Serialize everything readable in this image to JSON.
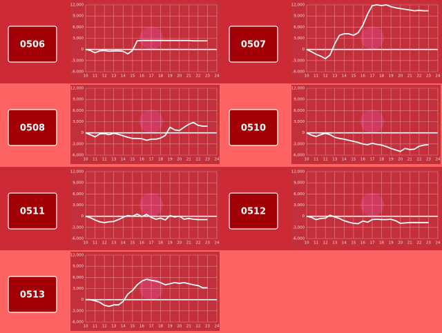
{
  "chart_data": [
    {
      "type": "line",
      "title": "0506",
      "color": "#ffffff",
      "grid": true,
      "x": [
        10,
        10.5,
        11,
        11.5,
        12,
        12.5,
        13,
        13.5,
        14,
        14.5,
        15,
        15.5,
        16,
        16.5,
        17,
        17.5,
        18,
        18.5,
        19,
        19.5,
        20,
        20.5,
        21,
        21.5,
        22,
        22.5,
        23
      ],
      "values": [
        0,
        -300,
        -900,
        -400,
        -300,
        -500,
        -400,
        -400,
        -500,
        -1200,
        -300,
        2300,
        2400,
        2400,
        2400,
        2400,
        2400,
        2400,
        2400,
        2400,
        2400,
        2400,
        2400,
        2300,
        2300,
        2300,
        2300
      ],
      "xlim": [
        10,
        24
      ],
      "xticks": [
        10,
        11,
        12,
        13,
        14,
        15,
        16,
        17,
        18,
        19,
        20,
        21,
        22,
        23,
        24
      ],
      "ylim": [
        -6000,
        12000
      ],
      "yticks": [
        {
          "value": 12000,
          "label": "12,000"
        },
        {
          "value": 9000,
          "label": "9,000"
        },
        {
          "value": 6000,
          "label": "6,000"
        },
        {
          "value": 3000,
          "label": "3,000"
        },
        0,
        {
          "value": -3000,
          "label": "-3,000"
        },
        {
          "value": -6000,
          "label": "-6,000"
        }
      ]
    },
    {
      "type": "line",
      "title": "0507",
      "color": "#ffffff",
      "grid": true,
      "x": [
        10,
        10.5,
        11,
        11.5,
        12,
        12.5,
        13,
        13.5,
        14,
        14.5,
        15,
        15.5,
        16,
        16.5,
        17,
        17.5,
        18,
        18.5,
        19,
        19.5,
        20,
        20.5,
        21,
        21.5,
        22,
        22.5,
        23
      ],
      "values": [
        0,
        -600,
        -1300,
        -1800,
        -2500,
        -1500,
        1500,
        3800,
        4200,
        4200,
        3800,
        4500,
        6500,
        9500,
        11800,
        12000,
        11800,
        12000,
        11500,
        11200,
        11000,
        10800,
        10600,
        10400,
        10500,
        10400,
        10400
      ],
      "xlim": [
        10,
        24
      ],
      "xticks": [
        10,
        11,
        12,
        13,
        14,
        15,
        16,
        17,
        18,
        19,
        20,
        21,
        22,
        23,
        24
      ],
      "ylim": [
        -6000,
        12000
      ],
      "yticks": [
        {
          "value": 12000,
          "label": "12,000"
        },
        {
          "value": 9000,
          "label": "9,000"
        },
        {
          "value": 6000,
          "label": "6,000"
        },
        {
          "value": 3000,
          "label": "3,000"
        },
        0,
        {
          "value": -3000,
          "label": "-3,000"
        },
        {
          "value": -6000,
          "label": "-6,000"
        }
      ]
    },
    {
      "type": "line",
      "title": "0508",
      "color": "#ffffff",
      "grid": true,
      "x": [
        10,
        10.5,
        11,
        11.5,
        12,
        12.5,
        13,
        13.5,
        14,
        14.5,
        15,
        15.5,
        16,
        16.5,
        17,
        17.5,
        18,
        18.5,
        19,
        19.5,
        20,
        20.5,
        21,
        21.5,
        22,
        22.5,
        23
      ],
      "values": [
        0,
        -500,
        -1100,
        -300,
        -200,
        -500,
        -100,
        -400,
        -800,
        -1200,
        -1500,
        -1500,
        -1600,
        -2000,
        -1700,
        -1700,
        -1400,
        -700,
        1500,
        800,
        600,
        1500,
        2300,
        2800,
        2000,
        1800,
        1800
      ],
      "xlim": [
        10,
        24
      ],
      "xticks": [
        10,
        11,
        12,
        13,
        14,
        15,
        16,
        17,
        18,
        19,
        20,
        21,
        22,
        23,
        24
      ],
      "ylim": [
        -6000,
        12000
      ],
      "yticks": [
        {
          "value": 12000,
          "label": "12,000"
        },
        {
          "value": 9000,
          "label": "9,000"
        },
        {
          "value": 6000,
          "label": "6,000"
        },
        {
          "value": 3000,
          "label": "3,000"
        },
        0,
        {
          "value": -3000,
          "label": "-3,000"
        },
        {
          "value": -6000,
          "label": "-6,000"
        }
      ]
    },
    {
      "type": "line",
      "title": "0510",
      "color": "#ffffff",
      "grid": true,
      "x": [
        10,
        10.5,
        11,
        11.5,
        12,
        12.5,
        13,
        13.5,
        14,
        14.5,
        15,
        15.5,
        16,
        16.5,
        17,
        17.5,
        18,
        18.5,
        19,
        19.5,
        20,
        20.5,
        21,
        21.5,
        22,
        22.5,
        23
      ],
      "values": [
        0,
        -600,
        -1000,
        -500,
        -100,
        -500,
        -1200,
        -1500,
        -1700,
        -2000,
        -2300,
        -2600,
        -3000,
        -3200,
        -2800,
        -3100,
        -3300,
        -3700,
        -4200,
        -4600,
        -5000,
        -4200,
        -4500,
        -4400,
        -3600,
        -3300,
        -3200
      ],
      "xlim": [
        10,
        24
      ],
      "xticks": [
        10,
        11,
        12,
        13,
        14,
        15,
        16,
        17,
        18,
        19,
        20,
        21,
        22,
        23,
        24
      ],
      "ylim": [
        -6000,
        12000
      ],
      "yticks": [
        {
          "value": 12000,
          "label": "12,000"
        },
        {
          "value": 9000,
          "label": "9,000"
        },
        {
          "value": 6000,
          "label": "6,000"
        },
        {
          "value": 3000,
          "label": "3,000"
        },
        0,
        {
          "value": -3000,
          "label": "-3,000"
        },
        {
          "value": -6000,
          "label": "-6,000"
        }
      ]
    },
    {
      "type": "line",
      "title": "0511",
      "color": "#ffffff",
      "grid": true,
      "x": [
        10,
        10.5,
        11,
        11.5,
        12,
        12.5,
        13,
        13.5,
        14,
        14.5,
        15,
        15.5,
        16,
        16.5,
        17,
        17.5,
        18,
        18.5,
        19,
        19.5,
        20,
        20.5,
        21,
        21.5,
        22,
        22.5,
        23
      ],
      "values": [
        0,
        -400,
        -1000,
        -1500,
        -1700,
        -1500,
        -1400,
        -900,
        -300,
        200,
        0,
        600,
        -100,
        500,
        -300,
        -800,
        -500,
        -1000,
        200,
        -200,
        0,
        -800,
        -600,
        -800,
        -900,
        -900,
        -900
      ],
      "xlim": [
        10,
        24
      ],
      "xticks": [
        10,
        11,
        12,
        13,
        14,
        15,
        16,
        17,
        18,
        19,
        20,
        21,
        22,
        23,
        24
      ],
      "ylim": [
        -6000,
        12000
      ],
      "yticks": [
        {
          "value": 12000,
          "label": "12,000"
        },
        {
          "value": 9000,
          "label": "9,000"
        },
        {
          "value": 6000,
          "label": "6,000"
        },
        {
          "value": 3000,
          "label": "3,000"
        },
        0,
        {
          "value": -3000,
          "label": "-3,000"
        },
        {
          "value": -6000,
          "label": "-6,000"
        }
      ]
    },
    {
      "type": "line",
      "title": "0512",
      "color": "#ffffff",
      "grid": true,
      "x": [
        10,
        10.5,
        11,
        11.5,
        12,
        12.5,
        13,
        13.5,
        14,
        14.5,
        15,
        15.5,
        16,
        16.5,
        17,
        17.5,
        18,
        18.5,
        19,
        19.5,
        20,
        20.5,
        21,
        21.5,
        22,
        22.5,
        23
      ],
      "values": [
        0,
        -300,
        -900,
        -600,
        -500,
        300,
        -200,
        -600,
        -1200,
        -1600,
        -1900,
        -2000,
        -1300,
        -1600,
        -900,
        -800,
        -900,
        -900,
        -800,
        -1200,
        -1900,
        -1800,
        -1700,
        -1700,
        -1700,
        -1700,
        -1700
      ],
      "xlim": [
        10,
        24
      ],
      "xticks": [
        10,
        11,
        12,
        13,
        14,
        15,
        16,
        17,
        18,
        19,
        20,
        21,
        22,
        23,
        24
      ],
      "ylim": [
        -6000,
        12000
      ],
      "yticks": [
        {
          "value": 12000,
          "label": "12,000"
        },
        {
          "value": 9000,
          "label": "9,000"
        },
        {
          "value": 6000,
          "label": "6,000"
        },
        {
          "value": 3000,
          "label": "3,000"
        },
        0,
        {
          "value": -3000,
          "label": "-3,000"
        },
        {
          "value": -6000,
          "label": "-6,000"
        }
      ]
    },
    {
      "type": "line",
      "title": "0513",
      "color": "#ffffff",
      "grid": true,
      "x": [
        10,
        10.5,
        11,
        11.5,
        12,
        12.5,
        13,
        13.5,
        14,
        14.5,
        15,
        15.5,
        16,
        16.5,
        17,
        17.5,
        18,
        18.5,
        19,
        19.5,
        20,
        20.5,
        21,
        21.5,
        22,
        22.5,
        23
      ],
      "values": [
        0,
        0,
        -300,
        -700,
        -1500,
        -1800,
        -1400,
        -1400,
        -500,
        1500,
        2500,
        4000,
        5000,
        5500,
        5200,
        5000,
        4600,
        4000,
        4300,
        4600,
        4400,
        4600,
        4300,
        4000,
        3800,
        3200,
        3200
      ],
      "xlim": [
        10,
        24
      ],
      "xticks": [
        10,
        11,
        12,
        13,
        14,
        15,
        16,
        17,
        18,
        19,
        20,
        21,
        22,
        23,
        24
      ],
      "ylim": [
        -6000,
        12000
      ],
      "yticks": [
        {
          "value": 12000,
          "label": "12,000"
        },
        {
          "value": 9000,
          "label": "9,000"
        },
        {
          "value": 6000,
          "label": "6,000"
        },
        {
          "value": 3000,
          "label": "3,000"
        },
        0,
        {
          "value": -3000,
          "label": "-3,000"
        },
        {
          "value": -6000,
          "label": "-6,000"
        }
      ]
    }
  ]
}
